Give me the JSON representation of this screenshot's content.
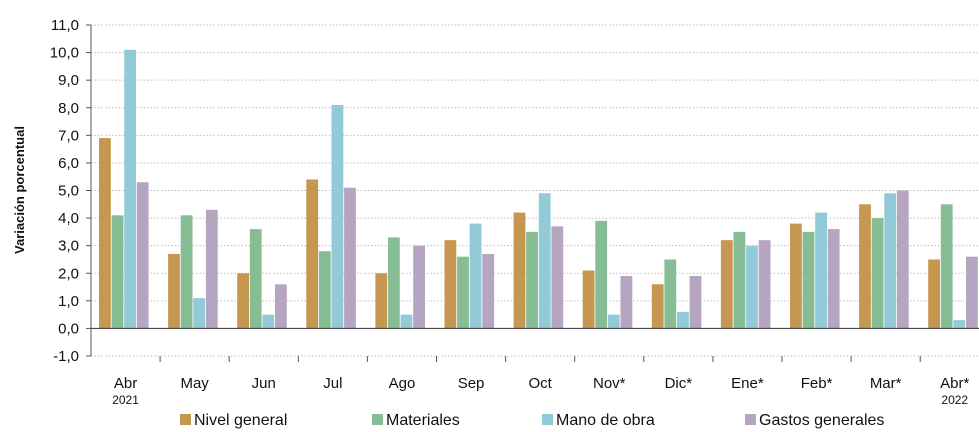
{
  "chart_data": {
    "type": "bar",
    "ylabel": "Variación porcentual",
    "ylim": [
      -1,
      11
    ],
    "ytick_step": 1,
    "ytick_labels": [
      "-1,0",
      "0,0",
      "1,0",
      "2,0",
      "3,0",
      "4,0",
      "5,0",
      "6,0",
      "7,0",
      "8,0",
      "9,0",
      "10,0",
      "11,0"
    ],
    "grid": true,
    "legend_position": "bottom",
    "categories": [
      "Abr",
      "May",
      "Jun",
      "Jul",
      "Ago",
      "Sep",
      "Oct",
      "Nov*",
      "Dic*",
      "Ene*",
      "Feb*",
      "Mar*",
      "Abr*"
    ],
    "category_sublabels": [
      "2021",
      "",
      "",
      "",
      "",
      "",
      "",
      "",
      "",
      "",
      "",
      "",
      "2022"
    ],
    "series": [
      {
        "name": "Nivel general",
        "color": "#c69750",
        "values": [
          6.9,
          2.7,
          2.0,
          5.4,
          2.0,
          3.2,
          4.2,
          2.1,
          1.6,
          3.2,
          3.8,
          4.5,
          2.5
        ]
      },
      {
        "name": "Materiales",
        "color": "#86bd95",
        "values": [
          4.1,
          4.1,
          3.6,
          2.8,
          3.3,
          2.6,
          3.5,
          3.9,
          2.5,
          3.5,
          3.5,
          4.0,
          4.5
        ]
      },
      {
        "name": "Mano de obra",
        "color": "#92cbd7",
        "values": [
          10.1,
          1.1,
          0.5,
          8.1,
          0.5,
          3.8,
          4.9,
          0.5,
          0.6,
          3.0,
          4.2,
          4.9,
          0.3
        ]
      },
      {
        "name": "Gastos generales",
        "color": "#b6a5c0",
        "values": [
          5.3,
          4.3,
          1.6,
          5.1,
          3.0,
          2.7,
          3.7,
          1.9,
          1.9,
          3.2,
          3.6,
          5.0,
          2.6
        ]
      }
    ]
  }
}
